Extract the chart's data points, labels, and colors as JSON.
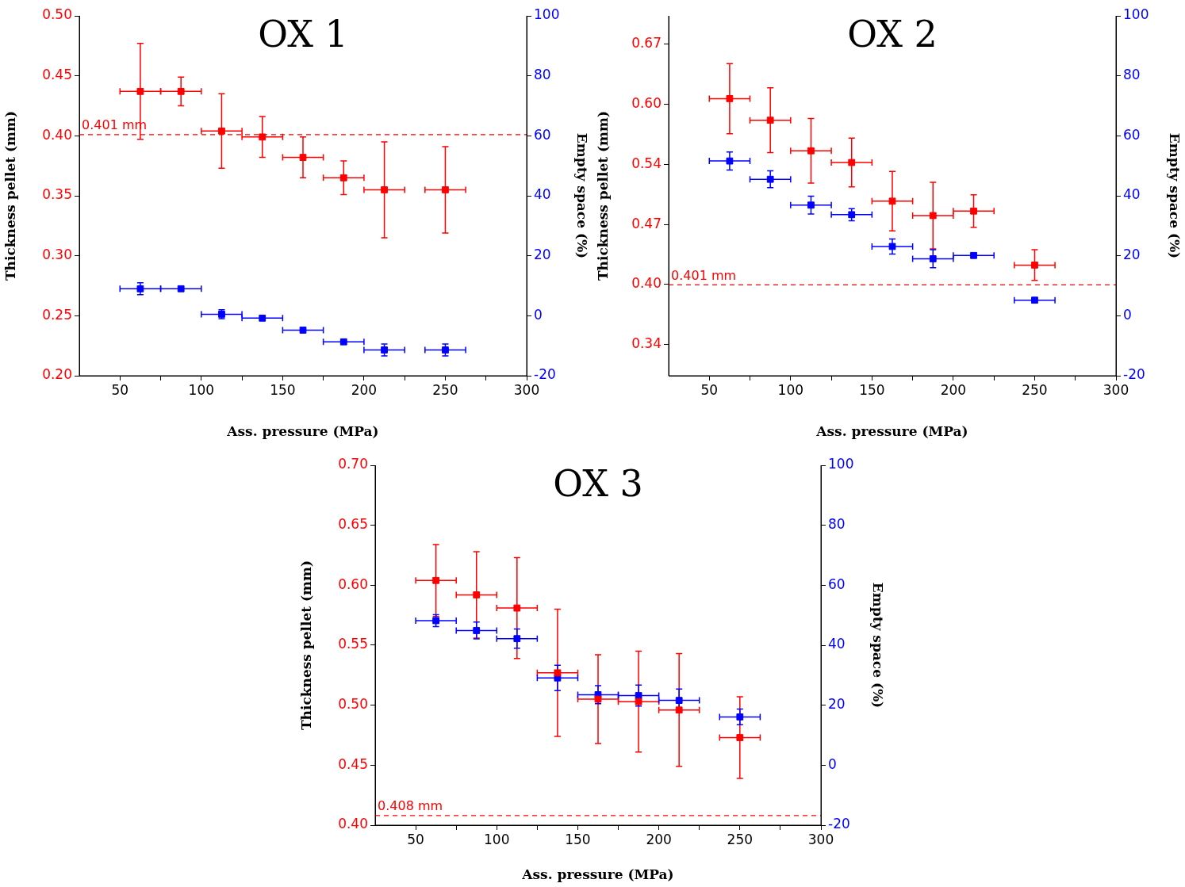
{
  "chart_data": [
    {
      "type": "scatter",
      "title": "OX 1",
      "xlabel": "Ass. pressure (MPa)",
      "ylabel": "Thickness pellet (mm)",
      "y2label": "Empty space (%)",
      "x": [
        62.5,
        87.5,
        112.5,
        137.5,
        162.5,
        187.5,
        212.5,
        250
      ],
      "xlim": [
        25,
        300
      ],
      "xticks": [
        50,
        {
          "value": 75,
          "label": null
        },
        100,
        {
          "value": 125,
          "label": null
        },
        150,
        {
          "value": 175,
          "label": null
        },
        200,
        {
          "value": 225,
          "label": null
        },
        250,
        {
          "value": 275,
          "label": null
        },
        300
      ],
      "ylim": [
        0.2,
        0.5
      ],
      "yticks": [
        {
          "value": 0.2,
          "label": "0.20"
        },
        0.25,
        {
          "value": 0.3,
          "label": "0.30"
        },
        0.35,
        {
          "value": 0.4,
          "label": "0.40"
        },
        0.45,
        {
          "value": 0.5,
          "label": "0.50"
        }
      ],
      "y2lim": [
        -20,
        100
      ],
      "y2ticks": [
        -20,
        0,
        20,
        40,
        60,
        80,
        100
      ],
      "marker": "square",
      "grid": false,
      "legend": false,
      "series": [
        {
          "color": "#ff0000",
          "values": [
            0.437,
            0.437,
            0.404,
            0.399,
            0.382,
            0.365,
            0.355,
            0.355
          ],
          "errors": [
            0.04,
            0.012,
            0.031,
            0.017,
            0.017,
            0.014,
            0.04,
            0.036
          ],
          "xerrors": [
            12.5,
            12.5,
            12.5,
            12.5,
            12.5,
            12.5,
            12.5,
            12.5
          ]
        },
        {
          "color": "#0000ff",
          "axis": "y2",
          "values": [
            9,
            9,
            0.5,
            -0.8,
            -4.8,
            -8.7,
            -11.4,
            -11.4
          ],
          "errors": [
            2,
            null,
            1.5,
            null,
            null,
            null,
            2,
            2
          ],
          "xerrors": [
            12.5,
            12.5,
            12.5,
            12.5,
            12.5,
            12.5,
            12.5,
            12.5
          ]
        }
      ],
      "ref_lines": [
        {
          "axis": "y",
          "value": 0.401,
          "label": "0.401 mm",
          "color": "#ff0000",
          "line_style": "dashed"
        }
      ]
    },
    {
      "type": "scatter",
      "title": "OX 2",
      "xlabel": "Ass. pressure (MPa)",
      "ylabel": "Thickness pellet (mm)",
      "y2label": "Empty space (%)",
      "x": [
        62.5,
        87.5,
        112.5,
        137.5,
        162.5,
        187.5,
        212.5,
        250
      ],
      "xlim": [
        25,
        300
      ],
      "xticks": [
        50,
        {
          "value": 75,
          "label": null
        },
        100,
        {
          "value": 125,
          "label": null
        },
        150,
        {
          "value": 175,
          "label": null
        },
        200,
        {
          "value": 225,
          "label": null
        },
        250,
        {
          "value": 275,
          "label": null
        },
        300
      ],
      "ylim": [
        0.3,
        0.7
      ],
      "yticks": [
        {
          "value": 0.335,
          "label": "0.34"
        },
        {
          "value": 0.402,
          "label": "0.40"
        },
        {
          "value": 0.468,
          "label": "0.47"
        },
        {
          "value": 0.535,
          "label": "0.54"
        },
        {
          "value": 0.602,
          "label": "0.60"
        },
        {
          "value": 0.669,
          "label": "0.67"
        }
      ],
      "y2lim": [
        -20,
        100
      ],
      "y2ticks": [
        -20,
        0,
        20,
        40,
        60,
        80,
        100
      ],
      "marker": "square",
      "grid": false,
      "legend": false,
      "series": [
        {
          "color": "#ff0000",
          "values": [
            0.608,
            0.584,
            0.55,
            0.537,
            0.494,
            0.478,
            0.483,
            0.423
          ],
          "errors": [
            0.039,
            0.036,
            0.036,
            0.027,
            0.033,
            0.037,
            0.018,
            0.017
          ],
          "xerrors": [
            12.5,
            12.5,
            12.5,
            12.5,
            12.5,
            12.5,
            12.5,
            12.5
          ]
        },
        {
          "color": "#0000ff",
          "axis": "y2",
          "values": [
            51.6,
            45.5,
            36.9,
            33.7,
            23.1,
            19,
            20.1,
            5.2
          ],
          "errors": [
            3,
            2.8,
            3,
            2,
            2.5,
            3,
            null,
            null
          ],
          "xerrors": [
            12.5,
            12.5,
            12.5,
            12.5,
            12.5,
            12.5,
            12.5,
            12.5
          ]
        }
      ],
      "ref_lines": [
        {
          "axis": "y",
          "value": 0.401,
          "label": "0.401 mm",
          "color": "#ff0000",
          "line_style": "dashed"
        }
      ]
    },
    {
      "type": "scatter",
      "title": "OX 3",
      "xlabel": "Ass. pressure (MPa)",
      "ylabel": "Thickness pellet (mm)",
      "y2label": "Empty space (%)",
      "x": [
        62.5,
        87.5,
        112.5,
        137.5,
        162.5,
        187.5,
        212.5,
        250
      ],
      "xlim": [
        25,
        300
      ],
      "xticks": [
        50,
        {
          "value": 75,
          "label": null
        },
        100,
        {
          "value": 125,
          "label": null
        },
        150,
        {
          "value": 175,
          "label": null
        },
        200,
        {
          "value": 225,
          "label": null
        },
        250,
        {
          "value": 275,
          "label": null
        },
        300
      ],
      "ylim": [
        0.4,
        0.7
      ],
      "yticks": [
        {
          "value": 0.4,
          "label": "0.40"
        },
        0.45,
        {
          "value": 0.5,
          "label": "0.50"
        },
        0.55,
        {
          "value": 0.6,
          "label": "0.60"
        },
        0.65,
        {
          "value": 0.7,
          "label": "0.70"
        }
      ],
      "y2lim": [
        -20,
        100
      ],
      "y2ticks": [
        -20,
        0,
        20,
        40,
        60,
        80,
        100
      ],
      "marker": "square",
      "grid": false,
      "legend": false,
      "series": [
        {
          "color": "#ff0000",
          "values": [
            0.604,
            0.592,
            0.581,
            0.527,
            0.505,
            0.503,
            0.496,
            0.473
          ],
          "errors": [
            0.03,
            0.036,
            0.042,
            0.053,
            0.037,
            0.042,
            0.047,
            0.034
          ],
          "xerrors": [
            12.5,
            12.5,
            12.5,
            12.5,
            12.5,
            12.5,
            12.5,
            12.5
          ]
        },
        {
          "color": "#0000ff",
          "axis": "y2",
          "values": [
            48.2,
            44.9,
            42.2,
            29.1,
            23.5,
            23.2,
            21.6,
            16.1
          ],
          "errors": [
            2,
            2.8,
            3.2,
            4.2,
            3,
            3.5,
            3.8,
            2.6
          ],
          "xerrors": [
            12.5,
            12.5,
            12.5,
            12.5,
            12.5,
            12.5,
            12.5,
            12.5
          ]
        }
      ],
      "ref_lines": [
        {
          "axis": "y",
          "value": 0.408,
          "label": "0.408 mm",
          "color": "#ff0000",
          "line_style": "dashed"
        }
      ]
    }
  ]
}
